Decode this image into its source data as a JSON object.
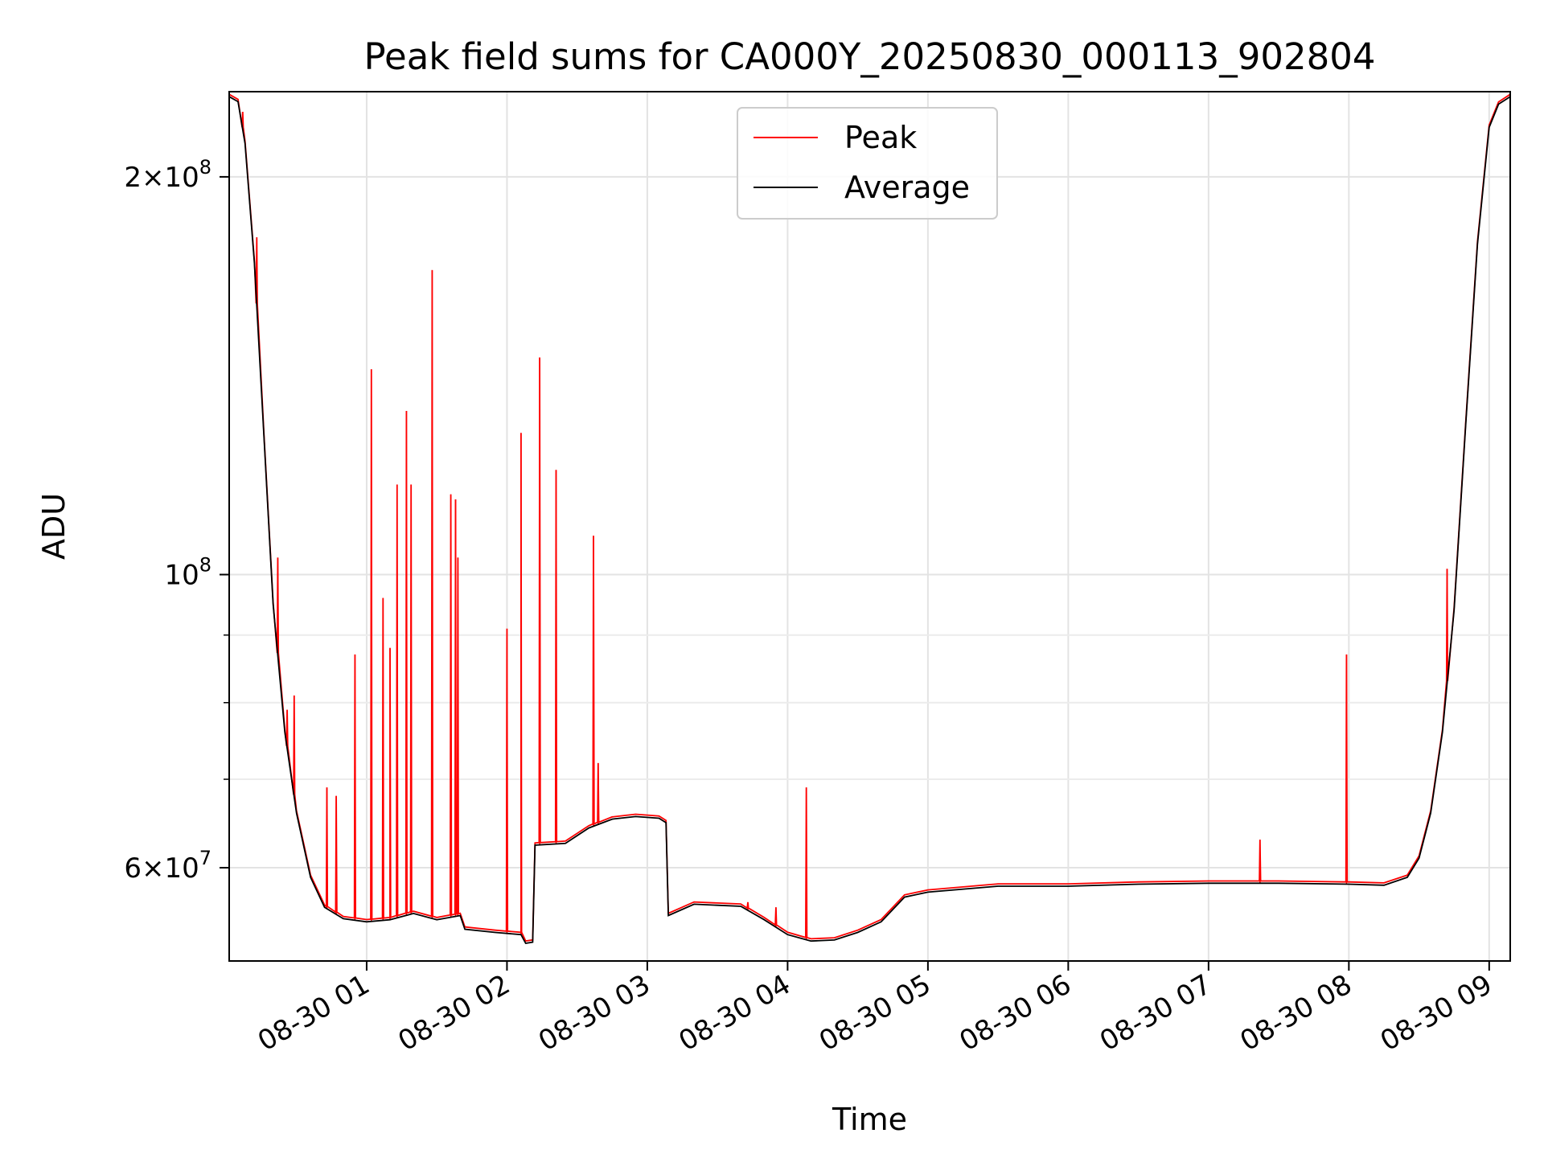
{
  "chart_data": {
    "type": "line",
    "title": "Peak field sums for CA000Y_20250830_000113_902804",
    "xlabel": "Time",
    "ylabel": "ADU",
    "yscale": "log",
    "ylim": [
      51000000,
      232000000
    ],
    "xlim": [
      "2025-08-30 00:01:13",
      "2025-08-30 09:09:00"
    ],
    "grid": true,
    "legend_position": "top-center",
    "x_ticks": [
      {
        "value": "2025-08-30 01:00",
        "label": "08-30 01"
      },
      {
        "value": "2025-08-30 02:00",
        "label": "08-30 02"
      },
      {
        "value": "2025-08-30 03:00",
        "label": "08-30 03"
      },
      {
        "value": "2025-08-30 04:00",
        "label": "08-30 04"
      },
      {
        "value": "2025-08-30 05:00",
        "label": "08-30 05"
      },
      {
        "value": "2025-08-30 06:00",
        "label": "08-30 06"
      },
      {
        "value": "2025-08-30 07:00",
        "label": "08-30 07"
      },
      {
        "value": "2025-08-30 08:00",
        "label": "08-30 08"
      },
      {
        "value": "2025-08-30 09:00",
        "label": "08-30 09"
      }
    ],
    "y_ticks": [
      {
        "value": 200000000,
        "mant": "2",
        "exp": "8"
      },
      {
        "value": 100000000,
        "mant": "",
        "exp": "8"
      },
      {
        "value": 60000000,
        "mant": "6",
        "exp": "7"
      }
    ],
    "y_minor_ticks": [
      70000000,
      80000000,
      90000000
    ],
    "series": [
      {
        "name": "Average",
        "color": "#000000",
        "points": [
          [
            "2025-08-30 00:01:13",
            230000000
          ],
          [
            "2025-08-30 00:05:00",
            228000000
          ],
          [
            "2025-08-30 00:08:00",
            212000000
          ],
          [
            "2025-08-30 00:12:00",
            172000000
          ],
          [
            "2025-08-30 00:16:00",
            128000000
          ],
          [
            "2025-08-30 00:20:00",
            95000000
          ],
          [
            "2025-08-30 00:25:00",
            76000000
          ],
          [
            "2025-08-30 00:30:00",
            66000000
          ],
          [
            "2025-08-30 00:36:00",
            59000000
          ],
          [
            "2025-08-30 00:42:00",
            56000000
          ],
          [
            "2025-08-30 00:50:00",
            54900000
          ],
          [
            "2025-08-30 01:00:00",
            54600000
          ],
          [
            "2025-08-30 01:10:00",
            54800000
          ],
          [
            "2025-08-30 01:20:00",
            55400000
          ],
          [
            "2025-08-30 01:30:00",
            54800000
          ],
          [
            "2025-08-30 01:40:00",
            55200000
          ],
          [
            "2025-08-30 01:42:00",
            53900000
          ],
          [
            "2025-08-30 01:55:00",
            53600000
          ],
          [
            "2025-08-30 02:06:00",
            53400000
          ],
          [
            "2025-08-30 02:08:00",
            52600000
          ],
          [
            "2025-08-30 02:11:00",
            52700000
          ],
          [
            "2025-08-30 02:12:00",
            62400000
          ],
          [
            "2025-08-30 02:25:00",
            62600000
          ],
          [
            "2025-08-30 02:35:00",
            64300000
          ],
          [
            "2025-08-30 02:45:00",
            65300000
          ],
          [
            "2025-08-30 02:55:00",
            65600000
          ],
          [
            "2025-08-30 03:05:00",
            65400000
          ],
          [
            "2025-08-30 03:08:00",
            64900000
          ],
          [
            "2025-08-30 03:09:00",
            55200000
          ],
          [
            "2025-08-30 03:20:00",
            56300000
          ],
          [
            "2025-08-30 03:30:00",
            56200000
          ],
          [
            "2025-08-30 03:40:00",
            56100000
          ],
          [
            "2025-08-30 03:50:00",
            54800000
          ],
          [
            "2025-08-30 04:00:00",
            53400000
          ],
          [
            "2025-08-30 04:10:00",
            52800000
          ],
          [
            "2025-08-30 04:20:00",
            52900000
          ],
          [
            "2025-08-30 04:30:00",
            53600000
          ],
          [
            "2025-08-30 04:40:00",
            54600000
          ],
          [
            "2025-08-30 04:50:00",
            57000000
          ],
          [
            "2025-08-30 05:00:00",
            57500000
          ],
          [
            "2025-08-30 05:30:00",
            58100000
          ],
          [
            "2025-08-30 06:00:00",
            58100000
          ],
          [
            "2025-08-30 06:30:00",
            58300000
          ],
          [
            "2025-08-30 07:00:00",
            58400000
          ],
          [
            "2025-08-30 07:30:00",
            58400000
          ],
          [
            "2025-08-30 08:00:00",
            58300000
          ],
          [
            "2025-08-30 08:15:00",
            58200000
          ],
          [
            "2025-08-30 08:25:00",
            59000000
          ],
          [
            "2025-08-30 08:30:00",
            61000000
          ],
          [
            "2025-08-30 08:35:00",
            66000000
          ],
          [
            "2025-08-30 08:40:00",
            76000000
          ],
          [
            "2025-08-30 08:45:00",
            94000000
          ],
          [
            "2025-08-30 08:50:00",
            130000000
          ],
          [
            "2025-08-30 08:55:00",
            178000000
          ],
          [
            "2025-08-30 09:00:00",
            218000000
          ],
          [
            "2025-08-30 09:04:00",
            227000000
          ],
          [
            "2025-08-30 09:09:00",
            230000000
          ]
        ]
      },
      {
        "name": "Peak",
        "color": "#ff0000",
        "spikes": [
          [
            "2025-08-30 00:07:00",
            224000000
          ],
          [
            "2025-08-30 00:13:00",
            180000000
          ],
          [
            "2025-08-30 00:22:00",
            103000000
          ],
          [
            "2025-08-30 00:26:00",
            79000000
          ],
          [
            "2025-08-30 00:29:00",
            81000000
          ],
          [
            "2025-08-30 00:43:00",
            69000000
          ],
          [
            "2025-08-30 00:47:00",
            68000000
          ],
          [
            "2025-08-30 00:55:00",
            87000000
          ],
          [
            "2025-08-30 01:02:00",
            143000000
          ],
          [
            "2025-08-30 01:07:00",
            96000000
          ],
          [
            "2025-08-30 01:10:00",
            88000000
          ],
          [
            "2025-08-30 01:13:00",
            117000000
          ],
          [
            "2025-08-30 01:17:00",
            133000000
          ],
          [
            "2025-08-30 01:19:00",
            117000000
          ],
          [
            "2025-08-30 01:28:00",
            170000000
          ],
          [
            "2025-08-30 01:36:00",
            115000000
          ],
          [
            "2025-08-30 01:38:00",
            114000000
          ],
          [
            "2025-08-30 01:39:00",
            103000000
          ],
          [
            "2025-08-30 02:00:00",
            91000000
          ],
          [
            "2025-08-30 02:06:00",
            128000000
          ],
          [
            "2025-08-30 02:14:00",
            146000000
          ],
          [
            "2025-08-30 02:21:00",
            120000000
          ],
          [
            "2025-08-30 02:37:00",
            107000000
          ],
          [
            "2025-08-30 02:39:00",
            72000000
          ],
          [
            "2025-08-30 04:08:00",
            69000000
          ],
          [
            "2025-08-30 07:22:00",
            63000000
          ],
          [
            "2025-08-30 07:59:00",
            87000000
          ],
          [
            "2025-08-30 08:42:00",
            101000000
          ],
          [
            "2025-08-30 03:43:00",
            56500000
          ],
          [
            "2025-08-30 03:55:00",
            56000000
          ]
        ]
      }
    ]
  }
}
